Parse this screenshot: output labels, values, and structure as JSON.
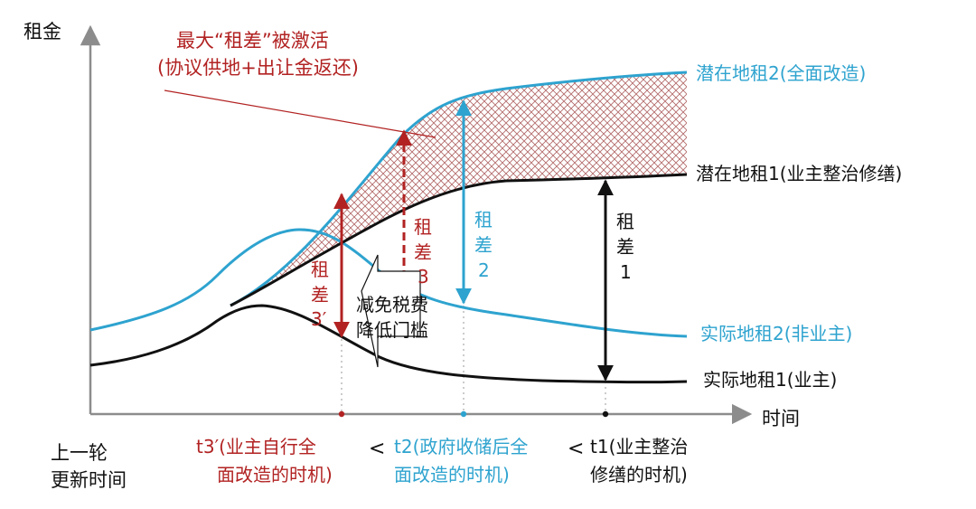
{
  "colors": {
    "black": "#111111",
    "blue": "#2ea3cf",
    "red": "#b22222",
    "gray": "#8c8c8c",
    "hatch": "#b46b6b"
  },
  "axis": {
    "y_label": "租金",
    "x_label": "时间",
    "origin_label": [
      "上一轮",
      "更新时间"
    ]
  },
  "callout": {
    "lines": [
      "最大“租差”被激活",
      "(协议供地+出让金返还)"
    ]
  },
  "curves": {
    "potential2": "潜在地租2(全面改造)",
    "potential1": "潜在地租1(业主整治修缮)",
    "actual2": "实际地租2(非业主)",
    "actual1": "实际地租1(业主)"
  },
  "gaps": {
    "g3p": [
      "租",
      "差",
      "3′"
    ],
    "g3": [
      "租",
      "差",
      "3"
    ],
    "g2": [
      "租",
      "差",
      "2"
    ],
    "g1": [
      "租",
      "差",
      "1"
    ]
  },
  "arrow_note": [
    "减免税费",
    "降低门槛"
  ],
  "time_labels": {
    "t3p": [
      "t3′(业主自行全",
      "面改造的时机)"
    ],
    "lt1": "<",
    "t2": [
      "t2(政府收储后全",
      "面改造的时机)"
    ],
    "lt2": "<",
    "t1": [
      "t1(业主整治",
      "修缮的时机)"
    ]
  }
}
